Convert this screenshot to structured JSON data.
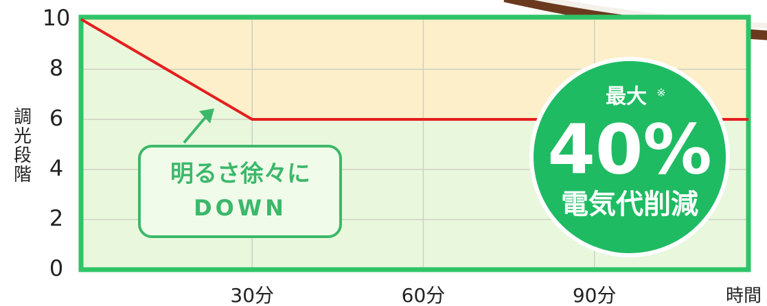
{
  "chart_data": {
    "type": "line",
    "y_label": "調光段階",
    "x_label": "時間",
    "x": [
      0,
      30,
      117
    ],
    "values": [
      10,
      6,
      6
    ],
    "color": "#e41e1e",
    "xlim": [
      0,
      117
    ],
    "ylim": [
      0,
      10
    ],
    "yticks": [
      0,
      2,
      4,
      6,
      8,
      10
    ],
    "xticks": [
      {
        "value": 30,
        "label": "30分"
      },
      {
        "value": 60,
        "label": "60分"
      },
      {
        "value": 90,
        "label": "90分"
      }
    ],
    "grid": true,
    "annotations": {
      "callout": [
        "明るさ徐々に",
        "DOWN"
      ],
      "badge": {
        "top": "最大",
        "note": "※",
        "value": "40%",
        "caption": "電気代削減"
      }
    }
  }
}
